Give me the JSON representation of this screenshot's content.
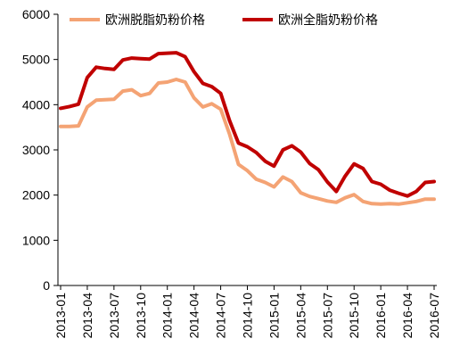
{
  "chart_data": {
    "type": "line",
    "title": "",
    "xlabel": "",
    "ylabel": "",
    "ylim": [
      0,
      6000
    ],
    "yticks": [
      0,
      1000,
      2000,
      3000,
      4000,
      5000,
      6000
    ],
    "ytick_labels": [
      "0",
      "1000",
      "2000",
      "3000",
      "4000",
      "5000",
      "6000"
    ],
    "xtick_labels": [
      "2013-01",
      "2013-04",
      "2013-07",
      "2013-10",
      "2014-01",
      "2014-04",
      "2014-07",
      "2014-10",
      "2015-01",
      "2015-04",
      "2015-07",
      "2015-10",
      "2016-01",
      "2016-04",
      "2016-07"
    ],
    "x": [
      "2013-01",
      "2013-02",
      "2013-03",
      "2013-04",
      "2013-05",
      "2013-06",
      "2013-07",
      "2013-08",
      "2013-09",
      "2013-10",
      "2013-11",
      "2013-12",
      "2014-01",
      "2014-02",
      "2014-03",
      "2014-04",
      "2014-05",
      "2014-06",
      "2014-07",
      "2014-08",
      "2014-09",
      "2014-10",
      "2014-11",
      "2014-12",
      "2015-01",
      "2015-02",
      "2015-03",
      "2015-04",
      "2015-05",
      "2015-06",
      "2015-07",
      "2015-08",
      "2015-09",
      "2015-10",
      "2015-11",
      "2015-12",
      "2016-01",
      "2016-02",
      "2016-03",
      "2016-04",
      "2016-05",
      "2016-06",
      "2016-07"
    ],
    "grid": false,
    "legend_position": "top",
    "series": [
      {
        "name": "欧洲脱脂奶粉价格",
        "color": "#F4A374",
        "values": [
          3520,
          3520,
          3530,
          3950,
          4100,
          4110,
          4120,
          4300,
          4330,
          4200,
          4250,
          4480,
          4500,
          4560,
          4500,
          4150,
          3950,
          4020,
          3900,
          3350,
          2680,
          2540,
          2350,
          2280,
          2180,
          2400,
          2300,
          2050,
          1970,
          1920,
          1870,
          1840,
          1940,
          2010,
          1860,
          1810,
          1800,
          1810,
          1800,
          1830,
          1860,
          1910,
          1910
        ]
      },
      {
        "name": "欧洲全脂奶粉价格",
        "color": "#C00000",
        "values": [
          3920,
          3960,
          4010,
          4600,
          4830,
          4800,
          4780,
          4990,
          5030,
          5020,
          5010,
          5130,
          5140,
          5150,
          5060,
          4730,
          4470,
          4400,
          4250,
          3650,
          3150,
          3070,
          2940,
          2750,
          2640,
          3000,
          3090,
          2950,
          2700,
          2560,
          2290,
          2080,
          2420,
          2690,
          2590,
          2300,
          2240,
          2110,
          2040,
          1980,
          2080,
          2280,
          2300
        ]
      }
    ]
  }
}
